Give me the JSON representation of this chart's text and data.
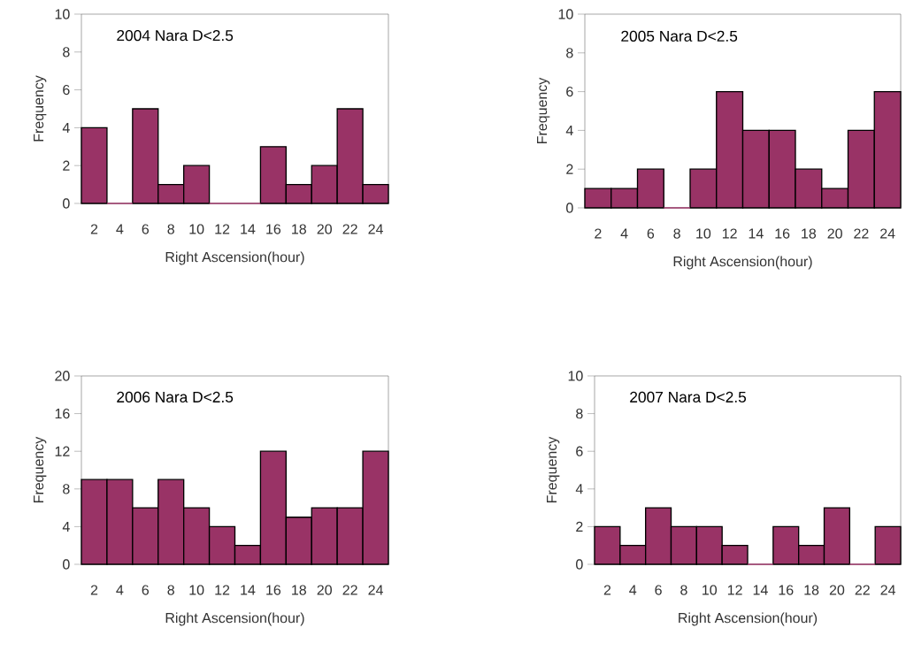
{
  "chart_data": [
    {
      "type": "bar",
      "title": "2004 Nara D<2.5",
      "xlabel": "Right Ascension(hour)",
      "ylabel": "Frequency",
      "categories": [
        "2",
        "4",
        "6",
        "8",
        "10",
        "12",
        "14",
        "16",
        "18",
        "20",
        "22",
        "24"
      ],
      "values": [
        4,
        0,
        5,
        1,
        2,
        0,
        0,
        3,
        1,
        2,
        5,
        1
      ],
      "color": "#993366",
      "ylim": [
        0,
        10
      ],
      "yticks": [
        0,
        2,
        4,
        6,
        8,
        10
      ]
    },
    {
      "type": "bar",
      "title": "2005 Nara  D<2.5",
      "xlabel": "Right Ascension(hour)",
      "ylabel": "Frequency",
      "categories": [
        "2",
        "4",
        "6",
        "8",
        "10",
        "12",
        "14",
        "16",
        "18",
        "20",
        "22",
        "24"
      ],
      "values": [
        1,
        1,
        2,
        0,
        2,
        6,
        4,
        4,
        2,
        1,
        4,
        6
      ],
      "color": "#993366",
      "ylim": [
        0,
        10
      ],
      "yticks": [
        0,
        2,
        4,
        6,
        8,
        10
      ]
    },
    {
      "type": "bar",
      "title": "2006 Nara D<2.5",
      "xlabel": "Right Ascension(hour)",
      "ylabel": "Frequency",
      "categories": [
        "2",
        "4",
        "6",
        "8",
        "10",
        "12",
        "14",
        "16",
        "18",
        "20",
        "22",
        "24"
      ],
      "values": [
        9,
        9,
        6,
        9,
        6,
        4,
        2,
        12,
        5,
        6,
        6,
        12
      ],
      "color": "#993366",
      "ylim": [
        0,
        20
      ],
      "yticks": [
        0,
        4,
        8,
        12,
        16,
        20
      ]
    },
    {
      "type": "bar",
      "title": "2007 Nara D<2.5",
      "xlabel": "Right Ascension(hour)",
      "ylabel": "Frequency",
      "categories": [
        "2",
        "4",
        "6",
        "8",
        "10",
        "12",
        "14",
        "16",
        "18",
        "20",
        "22",
        "24"
      ],
      "values": [
        2,
        1,
        3,
        2,
        2,
        1,
        0,
        2,
        1,
        3,
        0,
        2
      ],
      "color": "#993366",
      "ylim": [
        0,
        10
      ],
      "yticks": [
        0,
        2,
        4,
        6,
        8,
        10
      ]
    }
  ]
}
